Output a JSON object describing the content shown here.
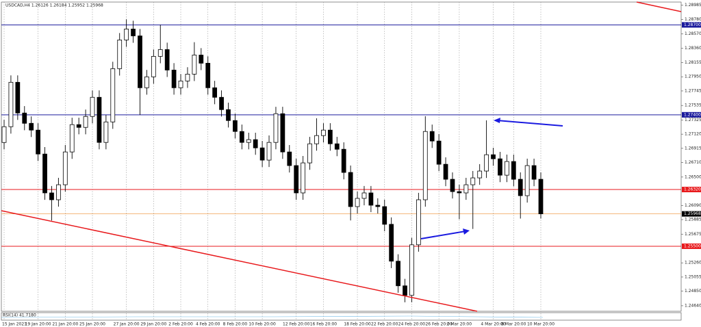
{
  "chart_data": {
    "type": "candlestick",
    "header": "USDCAD,H4  1.26126 1.26184 1.25952 1.25968",
    "indicator": "RSI(14) 41.7180",
    "categories": [
      "15 Jan 2021",
      null,
      null,
      null,
      null,
      "19 Jan 20:00",
      null,
      null,
      null,
      "21 Jan 20:00",
      null,
      null,
      null,
      "25 Jan 20:00",
      null,
      null,
      null,
      null,
      "27 Jan 20:00",
      null,
      null,
      null,
      "29 Jan 20:00",
      null,
      null,
      null,
      "2 Feb 20:00",
      null,
      null,
      null,
      "4 Feb 20:00",
      null,
      null,
      null,
      "8 Feb 20:00",
      null,
      null,
      null,
      "10 Feb 20:00",
      null,
      null,
      null,
      null,
      "12 Feb 20:00",
      null,
      null,
      null,
      "16 Feb 20:00",
      null,
      null,
      null,
      null,
      "18 Feb 20:00",
      null,
      null,
      null,
      "22 Feb 20:00",
      null,
      null,
      null,
      "24 Feb 20:00",
      null,
      null,
      null,
      "26 Feb 20:00",
      null,
      null,
      "2 Mar 20:00",
      null,
      null,
      null,
      null,
      "4 Mar 20:00",
      null,
      null,
      "8 Mar 20:00",
      null,
      null,
      null,
      "10 Mar 20:00"
    ],
    "open": [
      1.27,
      1.27228,
      1.2787,
      1.27426,
      1.27277,
      1.27179,
      1.26833,
      1.26271,
      1.26172,
      1.26389,
      1.26863,
      1.27258,
      1.27218,
      1.27376,
      1.27653,
      1.27001,
      1.27297,
      1.28067,
      1.28482,
      1.2864,
      1.28541,
      1.27791,
      1.27949,
      1.28245,
      1.28343,
      1.28047,
      1.27791,
      1.27889,
      1.27988,
      1.28264,
      1.28146,
      1.27791,
      1.27653,
      1.27475,
      1.27317,
      1.27159,
      1.27001,
      1.27041,
      1.26922,
      1.26745,
      1.27001,
      1.27416,
      1.26863,
      1.26666,
      1.26271,
      1.26705,
      1.26981,
      1.271,
      1.27179,
      1.26981,
      1.26902,
      1.26567,
      1.26073,
      1.26192,
      1.26271,
      1.26093,
      1.26073,
      1.25817,
      1.25284,
      1.24928,
      1.2479,
      1.25521,
      1.26172,
      1.27159,
      1.27021,
      1.26685,
      1.26468,
      1.2629,
      1.26271,
      1.26389,
      1.26488,
      1.26587,
      1.26823,
      1.26764,
      1.26527,
      1.26725,
      1.26468,
      1.26231,
      1.26666,
      1.26468
    ],
    "high": [
      1.27328,
      1.2797,
      1.2797,
      1.27526,
      1.27377,
      1.27279,
      1.26933,
      1.26371,
      1.26489,
      1.26963,
      1.27358,
      1.27358,
      1.27476,
      1.27753,
      1.27753,
      1.27397,
      1.28167,
      1.28582,
      1.2878,
      1.2876,
      1.28641,
      1.28049,
      1.28345,
      1.287,
      1.28443,
      1.28147,
      1.27989,
      1.28088,
      1.2845,
      1.28364,
      1.28246,
      1.27891,
      1.27753,
      1.27575,
      1.27417,
      1.27259,
      1.27141,
      1.27141,
      1.27022,
      1.27101,
      1.27516,
      1.27516,
      1.26963,
      1.26766,
      1.26805,
      1.27081,
      1.2735,
      1.27279,
      1.27279,
      1.27081,
      1.27002,
      1.26667,
      1.26292,
      1.26371,
      1.26371,
      1.26193,
      1.26173,
      1.25917,
      1.25384,
      1.25028,
      1.25621,
      1.26272,
      1.2738,
      1.27259,
      1.27121,
      1.26785,
      1.26568,
      1.2639,
      1.26489,
      1.26588,
      1.26687,
      1.2732,
      1.26923,
      1.26864,
      1.26825,
      1.26825,
      1.26568,
      1.26766,
      1.26766,
      1.26568
    ],
    "low": [
      1.269,
      1.27128,
      1.27326,
      1.27177,
      1.27079,
      1.26733,
      1.26171,
      1.25872,
      1.26072,
      1.26289,
      1.26763,
      1.27118,
      1.27118,
      1.27276,
      1.26901,
      1.26901,
      1.27197,
      1.27967,
      1.28382,
      1.28441,
      1.274,
      1.27691,
      1.27849,
      1.28145,
      1.27947,
      1.27691,
      1.27691,
      1.27789,
      1.27888,
      1.28046,
      1.27691,
      1.27553,
      1.27375,
      1.27217,
      1.27059,
      1.26901,
      1.26901,
      1.26822,
      1.26645,
      1.26645,
      1.26901,
      1.26763,
      1.26566,
      1.26171,
      1.26171,
      1.26605,
      1.26881,
      1.27,
      1.26881,
      1.26802,
      1.26467,
      1.25873,
      1.25973,
      1.26092,
      1.25993,
      1.25973,
      1.25717,
      1.25184,
      1.24828,
      1.2469,
      1.2469,
      1.25421,
      1.26072,
      1.26921,
      1.26585,
      1.26368,
      1.2619,
      1.2589,
      1.26171,
      1.2575,
      1.26388,
      1.26487,
      1.26664,
      1.26427,
      1.26427,
      1.26368,
      1.259,
      1.26131,
      1.26368,
      1.259
    ],
    "close": [
      1.27228,
      1.2787,
      1.27426,
      1.27277,
      1.27179,
      1.26833,
      1.26271,
      1.26172,
      1.26389,
      1.26863,
      1.27258,
      1.27218,
      1.27376,
      1.27653,
      1.27001,
      1.27297,
      1.28067,
      1.28482,
      1.2864,
      1.28541,
      1.27791,
      1.27949,
      1.28245,
      1.28343,
      1.28047,
      1.27791,
      1.27889,
      1.27988,
      1.28264,
      1.28146,
      1.27791,
      1.27653,
      1.27475,
      1.27317,
      1.27159,
      1.27001,
      1.27041,
      1.26922,
      1.26745,
      1.27001,
      1.27416,
      1.26863,
      1.26666,
      1.26271,
      1.26705,
      1.26981,
      1.271,
      1.27179,
      1.26981,
      1.26902,
      1.26567,
      1.26073,
      1.26192,
      1.26271,
      1.26093,
      1.26073,
      1.25817,
      1.25284,
      1.24928,
      1.2479,
      1.25521,
      1.26172,
      1.27159,
      1.27021,
      1.26685,
      1.26468,
      1.2629,
      1.26271,
      1.26389,
      1.26488,
      1.26587,
      1.26823,
      1.26764,
      1.26527,
      1.26725,
      1.26468,
      1.26231,
      1.26666,
      1.26468,
      1.25968
    ],
    "ylim": [
      1.2456,
      1.2903
    ],
    "yticks": [
      1.28985,
      {
        "value": 1.2878,
        "label": "1.28780"
      },
      {
        "value": 1.2857,
        "label": "1.28570"
      },
      {
        "value": 1.2836,
        "label": "1.28360"
      },
      1.28155,
      {
        "value": 1.2795,
        "label": "1.27950"
      },
      1.27745,
      1.27535,
      1.27325,
      {
        "value": 1.2712,
        "label": "1.27120"
      },
      1.26915,
      {
        "value": 1.2671,
        "label": "1.26710"
      },
      {
        "value": 1.265,
        "label": "1.26500"
      },
      {
        "value": 1.2609,
        "label": "1.26090"
      },
      1.25885,
      1.25675,
      {
        "value": 1.2526,
        "label": "1.25260"
      },
      1.25055,
      {
        "value": 1.2485,
        "label": "1.24850"
      },
      {
        "value": 1.2464,
        "label": "1.24640"
      }
    ],
    "levels": [
      {
        "value": 1.287,
        "label": "1.28700",
        "color": "#1a1a9c"
      },
      {
        "value": 1.274,
        "label": "1.27400",
        "color": "#1a1a9c"
      },
      {
        "value": 1.2632,
        "label": "1.26320",
        "color": "#e8191c"
      },
      {
        "value": 1.255,
        "label": "1.25500",
        "color": "#e8191c"
      }
    ],
    "price_line": {
      "value": 1.25968,
      "label": "1.25968",
      "color": "#f0a050"
    },
    "up_color": "#ffffff",
    "down_color": "#000000"
  }
}
